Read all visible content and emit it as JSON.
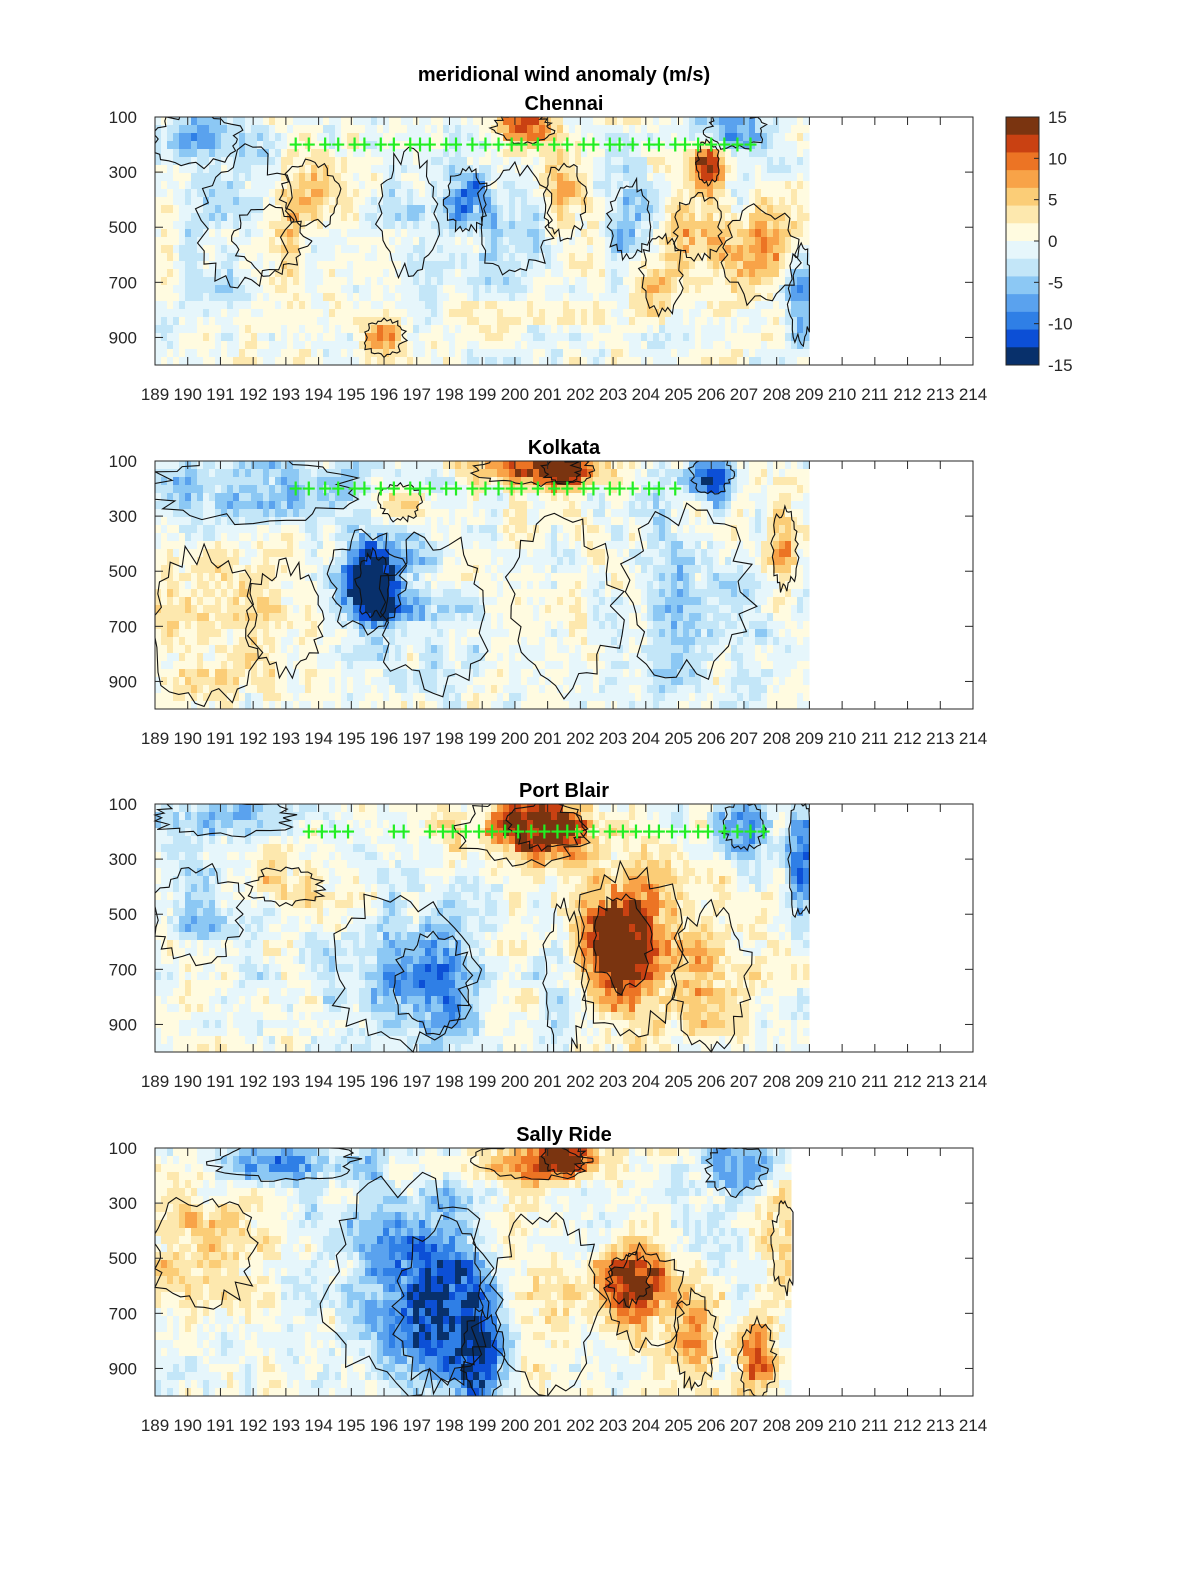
{
  "figure_title": "meridional wind anomaly (m/s)",
  "chart_data": [
    {
      "type": "heatmap",
      "title": "Chennai",
      "xlabel": "",
      "ylabel": "",
      "x_ticks": [
        "189",
        "190",
        "191",
        "192",
        "193",
        "194",
        "195",
        "196",
        "197",
        "198",
        "199",
        "200",
        "201",
        "202",
        "203",
        "204",
        "205",
        "206",
        "207",
        "208",
        "209",
        "210",
        "211",
        "212",
        "213",
        "214"
      ],
      "y_ticks": [
        100,
        300,
        500,
        700,
        900
      ],
      "ylim": [
        1000,
        100
      ],
      "xlim": [
        189,
        214
      ],
      "data_extent_x": [
        189,
        209
      ],
      "grid": false,
      "marker_level": 200,
      "marker_x": [
        193.3,
        193.7,
        194.2,
        194.6,
        195.1,
        195.4,
        195.9,
        196.3,
        196.8,
        197.1,
        197.4,
        197.9,
        198.2,
        198.7,
        199.1,
        199.5,
        199.9,
        200.2,
        200.7,
        201.2,
        201.6,
        202.1,
        202.4,
        202.9,
        203.2,
        203.6,
        204.1,
        204.4,
        204.9,
        205.2,
        205.6,
        206.0,
        206.4,
        206.8,
        207.2
      ],
      "features": [
        {
          "x": [
            189.0,
            191.5
          ],
          "p": [
            100,
            260
          ],
          "v": -7
        },
        {
          "x": [
            190.5,
            193.0
          ],
          "p": [
            250,
            700
          ],
          "v": -4
        },
        {
          "x": [
            191.5,
            193.5
          ],
          "p": [
            450,
            650
          ],
          "v": 6
        },
        {
          "x": [
            193.0,
            194.5
          ],
          "p": [
            280,
            480
          ],
          "v": 5
        },
        {
          "x": [
            196.0,
            197.5
          ],
          "p": [
            250,
            650
          ],
          "v": -3
        },
        {
          "x": [
            198.0,
            199.0
          ],
          "p": [
            300,
            500
          ],
          "v": -8
        },
        {
          "x": [
            199.0,
            201.0
          ],
          "p": [
            300,
            650
          ],
          "v": -4
        },
        {
          "x": [
            199.5,
            201.0
          ],
          "p": [
            100,
            180
          ],
          "v": 9
        },
        {
          "x": [
            201.0,
            202.0
          ],
          "p": [
            280,
            520
          ],
          "v": 6
        },
        {
          "x": [
            203.0,
            204.0
          ],
          "p": [
            350,
            600
          ],
          "v": -6
        },
        {
          "x": [
            204.0,
            205.0
          ],
          "p": [
            550,
            800
          ],
          "v": 5
        },
        {
          "x": [
            205.0,
            206.2
          ],
          "p": [
            400,
            600
          ],
          "v": 7
        },
        {
          "x": [
            205.7,
            206.1
          ],
          "p": [
            200,
            330
          ],
          "v": 12
        },
        {
          "x": [
            206.0,
            207.5
          ],
          "p": [
            100,
            200
          ],
          "v": -10
        },
        {
          "x": [
            206.5,
            208.5
          ],
          "p": [
            450,
            750
          ],
          "v": 7
        },
        {
          "x": [
            208.5,
            209.0
          ],
          "p": [
            600,
            900
          ],
          "v": -9
        },
        {
          "x": [
            195.5,
            196.5
          ],
          "p": [
            850,
            950
          ],
          "v": 7
        }
      ]
    },
    {
      "type": "heatmap",
      "title": "Kolkata",
      "xlabel": "",
      "ylabel": "",
      "x_ticks": [
        "189",
        "190",
        "191",
        "192",
        "193",
        "194",
        "195",
        "196",
        "197",
        "198",
        "199",
        "200",
        "201",
        "202",
        "203",
        "204",
        "205",
        "206",
        "207",
        "208",
        "209",
        "210",
        "211",
        "212",
        "213",
        "214"
      ],
      "y_ticks": [
        100,
        300,
        500,
        700,
        900
      ],
      "ylim": [
        1000,
        100
      ],
      "xlim": [
        189,
        214
      ],
      "data_extent_x": [
        189,
        209
      ],
      "grid": false,
      "marker_level": 200,
      "marker_x": [
        193.3,
        193.7,
        194.2,
        194.6,
        195.1,
        195.4,
        195.9,
        196.3,
        196.8,
        197.1,
        197.4,
        197.9,
        198.2,
        198.7,
        199.1,
        199.5,
        199.9,
        200.2,
        200.7,
        201.2,
        201.6,
        202.1,
        202.4,
        202.9,
        203.2,
        203.6,
        204.1,
        204.4,
        204.9
      ],
      "features": [
        {
          "x": [
            189.0,
            195.0
          ],
          "p": [
            100,
            300
          ],
          "v": -6
        },
        {
          "x": [
            189.0,
            192.0
          ],
          "p": [
            450,
            950
          ],
          "v": 4
        },
        {
          "x": [
            192.0,
            194.0
          ],
          "p": [
            500,
            850
          ],
          "v": 3
        },
        {
          "x": [
            194.5,
            196.5
          ],
          "p": [
            380,
            700
          ],
          "v": -9
        },
        {
          "x": [
            195.3,
            196.0
          ],
          "p": [
            450,
            650
          ],
          "v": -13
        },
        {
          "x": [
            196.0,
            199.0
          ],
          "p": [
            400,
            900
          ],
          "v": -3
        },
        {
          "x": [
            199.0,
            202.0
          ],
          "p": [
            100,
            170
          ],
          "v": 10
        },
        {
          "x": [
            201.0,
            202.2
          ],
          "p": [
            100,
            170
          ],
          "v": 13
        },
        {
          "x": [
            200.0,
            203.0
          ],
          "p": [
            350,
            900
          ],
          "v": 1.5
        },
        {
          "x": [
            203.5,
            207.0
          ],
          "p": [
            300,
            850
          ],
          "v": -4
        },
        {
          "x": [
            205.5,
            206.5
          ],
          "p": [
            100,
            200
          ],
          "v": -12
        },
        {
          "x": [
            208.0,
            208.5
          ],
          "p": [
            300,
            550
          ],
          "v": 7
        },
        {
          "x": [
            196.0,
            197.0
          ],
          "p": [
            200,
            300
          ],
          "v": 6
        }
      ]
    },
    {
      "type": "heatmap",
      "title": "Port Blair",
      "xlabel": "",
      "ylabel": "",
      "x_ticks": [
        "189",
        "190",
        "191",
        "192",
        "193",
        "194",
        "195",
        "196",
        "197",
        "198",
        "199",
        "200",
        "201",
        "202",
        "203",
        "204",
        "205",
        "206",
        "207",
        "208",
        "209",
        "210",
        "211",
        "212",
        "213",
        "214"
      ],
      "y_ticks": [
        100,
        300,
        500,
        700,
        900
      ],
      "ylim": [
        1000,
        100
      ],
      "xlim": [
        189,
        214
      ],
      "data_extent_x": [
        189,
        209
      ],
      "grid": false,
      "marker_level": 200,
      "marker_x": [
        193.7,
        194.1,
        194.5,
        194.9,
        196.3,
        196.6,
        197.4,
        197.8,
        198.1,
        198.5,
        198.9,
        199.3,
        199.7,
        200.1,
        200.5,
        200.9,
        201.3,
        201.6,
        201.9,
        202.4,
        202.9,
        203.3,
        203.7,
        204.1,
        204.4,
        204.8,
        205.2,
        205.6,
        205.9,
        206.4,
        206.8,
        207.2,
        207.6
      ],
      "features": [
        {
          "x": [
            189.0,
            193.0
          ],
          "p": [
            100,
            200
          ],
          "v": -6
        },
        {
          "x": [
            189.0,
            191.5
          ],
          "p": [
            350,
            650
          ],
          "v": -4
        },
        {
          "x": [
            192.0,
            194.0
          ],
          "p": [
            350,
            450
          ],
          "v": 5
        },
        {
          "x": [
            194.5,
            198.5
          ],
          "p": [
            450,
            950
          ],
          "v": -4
        },
        {
          "x": [
            196.5,
            198.5
          ],
          "p": [
            600,
            900
          ],
          "v": -8
        },
        {
          "x": [
            198.5,
            202.0
          ],
          "p": [
            100,
            300
          ],
          "v": 8
        },
        {
          "x": [
            200.0,
            202.0
          ],
          "p": [
            100,
            250
          ],
          "v": 12
        },
        {
          "x": [
            201.0,
            202.0
          ],
          "p": [
            500,
            1000
          ],
          "v": -4
        },
        {
          "x": [
            202.0,
            205.0
          ],
          "p": [
            350,
            900
          ],
          "v": 9
        },
        {
          "x": [
            202.5,
            204.0
          ],
          "p": [
            450,
            750
          ],
          "v": 14
        },
        {
          "x": [
            205.0,
            207.0
          ],
          "p": [
            500,
            950
          ],
          "v": 4
        },
        {
          "x": [
            206.5,
            207.5
          ],
          "p": [
            100,
            250
          ],
          "v": -9
        },
        {
          "x": [
            208.5,
            209.0
          ],
          "p": [
            100,
            500
          ],
          "v": -10
        }
      ]
    },
    {
      "type": "heatmap",
      "title": "Sally Ride",
      "xlabel": "",
      "ylabel": "",
      "x_ticks": [
        "189",
        "190",
        "191",
        "192",
        "193",
        "194",
        "195",
        "196",
        "197",
        "198",
        "199",
        "200",
        "201",
        "202",
        "203",
        "204",
        "205",
        "206",
        "207",
        "208",
        "209",
        "210",
        "211",
        "212",
        "213",
        "214"
      ],
      "y_ticks": [
        100,
        300,
        500,
        700,
        900
      ],
      "ylim": [
        1000,
        100
      ],
      "xlim": [
        189,
        214
      ],
      "data_extent_x": [
        189,
        208.5
      ],
      "grid": false,
      "marker_level": null,
      "marker_x": [],
      "features": [
        {
          "x": [
            191.0,
            195.0
          ],
          "p": [
            100,
            200
          ],
          "v": -8
        },
        {
          "x": [
            189.0,
            192.0
          ],
          "p": [
            300,
            650
          ],
          "v": 5
        },
        {
          "x": [
            194.5,
            199.0
          ],
          "p": [
            250,
            950
          ],
          "v": -6
        },
        {
          "x": [
            196.5,
            199.0
          ],
          "p": [
            400,
            950
          ],
          "v": -9
        },
        {
          "x": [
            198.5,
            199.5
          ],
          "p": [
            700,
            1000
          ],
          "v": -12
        },
        {
          "x": [
            199.0,
            202.0
          ],
          "p": [
            100,
            200
          ],
          "v": 9
        },
        {
          "x": [
            201.0,
            202.0
          ],
          "p": [
            100,
            180
          ],
          "v": 12
        },
        {
          "x": [
            199.5,
            202.5
          ],
          "p": [
            350,
            950
          ],
          "v": 3
        },
        {
          "x": [
            203.0,
            205.0
          ],
          "p": [
            480,
            800
          ],
          "v": 9
        },
        {
          "x": [
            203.0,
            204.0
          ],
          "p": [
            500,
            650
          ],
          "v": 12
        },
        {
          "x": [
            205.0,
            206.0
          ],
          "p": [
            650,
            950
          ],
          "v": 5
        },
        {
          "x": [
            206.0,
            207.5
          ],
          "p": [
            100,
            250
          ],
          "v": -11
        },
        {
          "x": [
            207.0,
            207.8
          ],
          "p": [
            750,
            1000
          ],
          "v": 10
        },
        {
          "x": [
            208.0,
            208.5
          ],
          "p": [
            300,
            600
          ],
          "v": 7
        }
      ]
    }
  ],
  "colorbar": {
    "ticks": [
      15,
      10,
      5,
      0,
      -5,
      -10,
      -15
    ],
    "range": [
      -15,
      15
    ],
    "colors": [
      "#08306b",
      "#0c4fd6",
      "#2f7fe6",
      "#5aa2ee",
      "#8cc8f4",
      "#c3e6f8",
      "#e6f6fb",
      "#fffbe0",
      "#fde8ae",
      "#fbcd77",
      "#f8a348",
      "#ec7424",
      "#c94112",
      "#7a3410"
    ]
  }
}
